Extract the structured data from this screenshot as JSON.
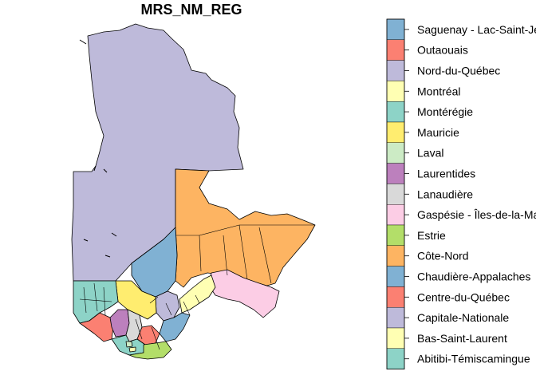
{
  "title": "MRS_NM_REG",
  "legend": [
    {
      "label": "Saguenay - Lac-Saint-Jean",
      "color": "#80B1D3"
    },
    {
      "label": "Outaouais",
      "color": "#FB8072"
    },
    {
      "label": "Nord-du-Québec",
      "color": "#BEBADA"
    },
    {
      "label": "Montréal",
      "color": "#FFFFB3"
    },
    {
      "label": "Montérégie",
      "color": "#8DD3C7"
    },
    {
      "label": "Mauricie",
      "color": "#FFED6F"
    },
    {
      "label": "Laval",
      "color": "#CCEBC5"
    },
    {
      "label": "Laurentides",
      "color": "#BC80BD"
    },
    {
      "label": "Lanaudière",
      "color": "#D9D9D9"
    },
    {
      "label": "Gaspésie - Îles-de-la-Madeleine",
      "color": "#FCCDE5"
    },
    {
      "label": "Estrie",
      "color": "#B3DE69"
    },
    {
      "label": "Côte-Nord",
      "color": "#FDB462"
    },
    {
      "label": "Chaudière-Appalaches",
      "color": "#80B1D3"
    },
    {
      "label": "Centre-du-Québec",
      "color": "#FB8072"
    },
    {
      "label": "Capitale-Nationale",
      "color": "#BEBADA"
    },
    {
      "label": "Bas-Saint-Laurent",
      "color": "#FFFFB3"
    },
    {
      "label": "Abitibi-Témiscamingue",
      "color": "#8DD3C7"
    }
  ]
}
